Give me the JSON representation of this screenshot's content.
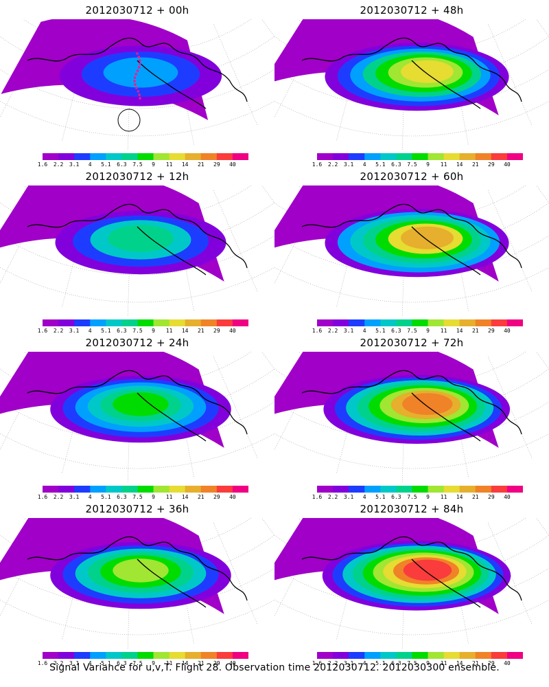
{
  "caption": "Signal Variance for u,v,T. Flight 28. Observation time 2012030712. 2012030300 ensemble.",
  "colorbar": {
    "labels": [
      "1.6",
      "2.2",
      "3.1",
      "4",
      "5.1",
      "6.3",
      "7.5",
      "9",
      "11",
      "14",
      "21",
      "29",
      "40"
    ],
    "colors": [
      "#a000c8",
      "#8200dc",
      "#1e3cff",
      "#00a0ff",
      "#00c8c8",
      "#00d28c",
      "#00dc00",
      "#a0e632",
      "#e6dc32",
      "#e6af2d",
      "#f08228",
      "#fa3c3c",
      "#f00082"
    ]
  },
  "panels": [
    {
      "title": "2012030712 + 00h",
      "level": 0.25,
      "show_track": true
    },
    {
      "title": "2012030712 + 48h",
      "level": 0.62,
      "show_track": false
    },
    {
      "title": "2012030712 + 12h",
      "level": 0.4,
      "show_track": false
    },
    {
      "title": "2012030712 + 60h",
      "level": 0.68,
      "show_track": false
    },
    {
      "title": "2012030712 + 24h",
      "level": 0.5,
      "show_track": false
    },
    {
      "title": "2012030712 + 72h",
      "level": 0.74,
      "show_track": false
    },
    {
      "title": "2012030712 + 36h",
      "level": 0.56,
      "show_track": false
    },
    {
      "title": "2012030712 + 84h",
      "level": 0.8,
      "show_track": false
    }
  ]
}
